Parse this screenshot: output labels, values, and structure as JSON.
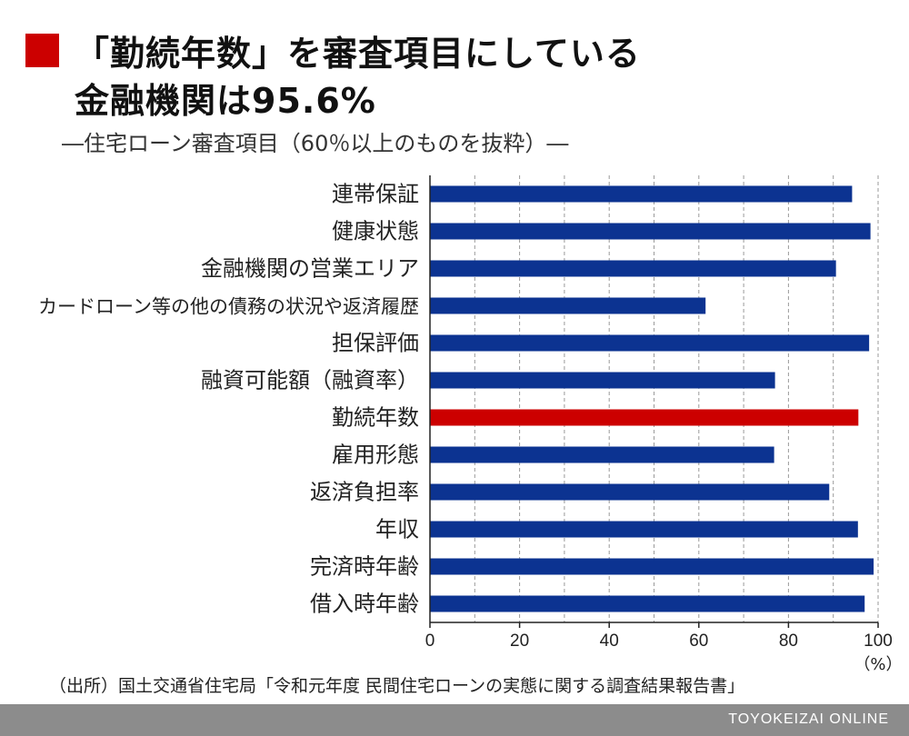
{
  "title_line1": "「勤続年数」を審査項目にしている",
  "title_line2": "金融機関は95.6%",
  "subtitle": "―住宅ローン審査項目（60％以上のものを抜粋）―",
  "source": "（出所）国土交通省住宅局「令和元年度 民間住宅ローンの実態に関する調査結果報告書」",
  "footer": "TOYOKEIZAI ONLINE",
  "colors": {
    "bar": "#0c3391",
    "highlight": "#cc0000",
    "accent": "#cc0000"
  },
  "chart_data": {
    "type": "bar",
    "orientation": "horizontal",
    "categories": [
      "連帯保証",
      "健康状態",
      "金融機関の営業エリア",
      "カードローン等の他の債務の状況や返済履歴",
      "担保評価",
      "融資可能額（融資率）",
      "勤続年数",
      "雇用形態",
      "返済負担率",
      "年収",
      "完済時年齢",
      "借入時年齢"
    ],
    "values": [
      94.2,
      98.3,
      90.6,
      61.5,
      98.0,
      77.0,
      95.6,
      76.8,
      89.1,
      95.5,
      99.0,
      97.0
    ],
    "highlight_index": 6,
    "xlim": [
      0,
      100
    ],
    "xticks": [
      0,
      20,
      40,
      60,
      80,
      100
    ],
    "x_unit": "（%）",
    "grid": true
  }
}
